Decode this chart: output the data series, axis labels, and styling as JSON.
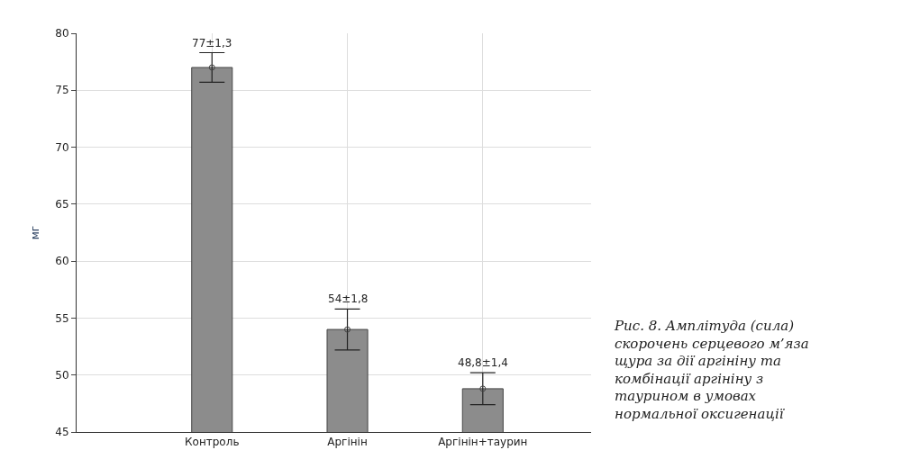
{
  "chart_data": {
    "type": "bar",
    "ylabel": "мг",
    "categories": [
      "Контроль",
      "Аргінін",
      "Аргінін+таурин"
    ],
    "series": [
      {
        "type": "bar",
        "color": "#8c8c8c",
        "values": [
          77,
          54,
          48.8
        ],
        "errors": [
          1.3,
          1.8,
          1.4
        ],
        "value_labels": [
          "77±1,3",
          "54±1,8",
          "48,8±1,4"
        ]
      },
      {
        "type": "scatter",
        "color": "#444444",
        "marker": "circle",
        "x": [
          "Контроль",
          "Аргінін",
          "Аргінін+таурин"
        ],
        "values": [
          77,
          54,
          48.8
        ]
      }
    ],
    "ylim": [
      45,
      80
    ],
    "yticks": [
      45,
      50,
      55,
      60,
      65,
      70,
      75,
      80
    ],
    "grid": true,
    "annotations": [
      "Рис. 8. Амплітуда (сила)\nскорочень серцевого м’яза\nщура за дії аргініну та\nкомбінації аргініну з\nтаурином в умовах\nнормальної оксигенації"
    ]
  }
}
